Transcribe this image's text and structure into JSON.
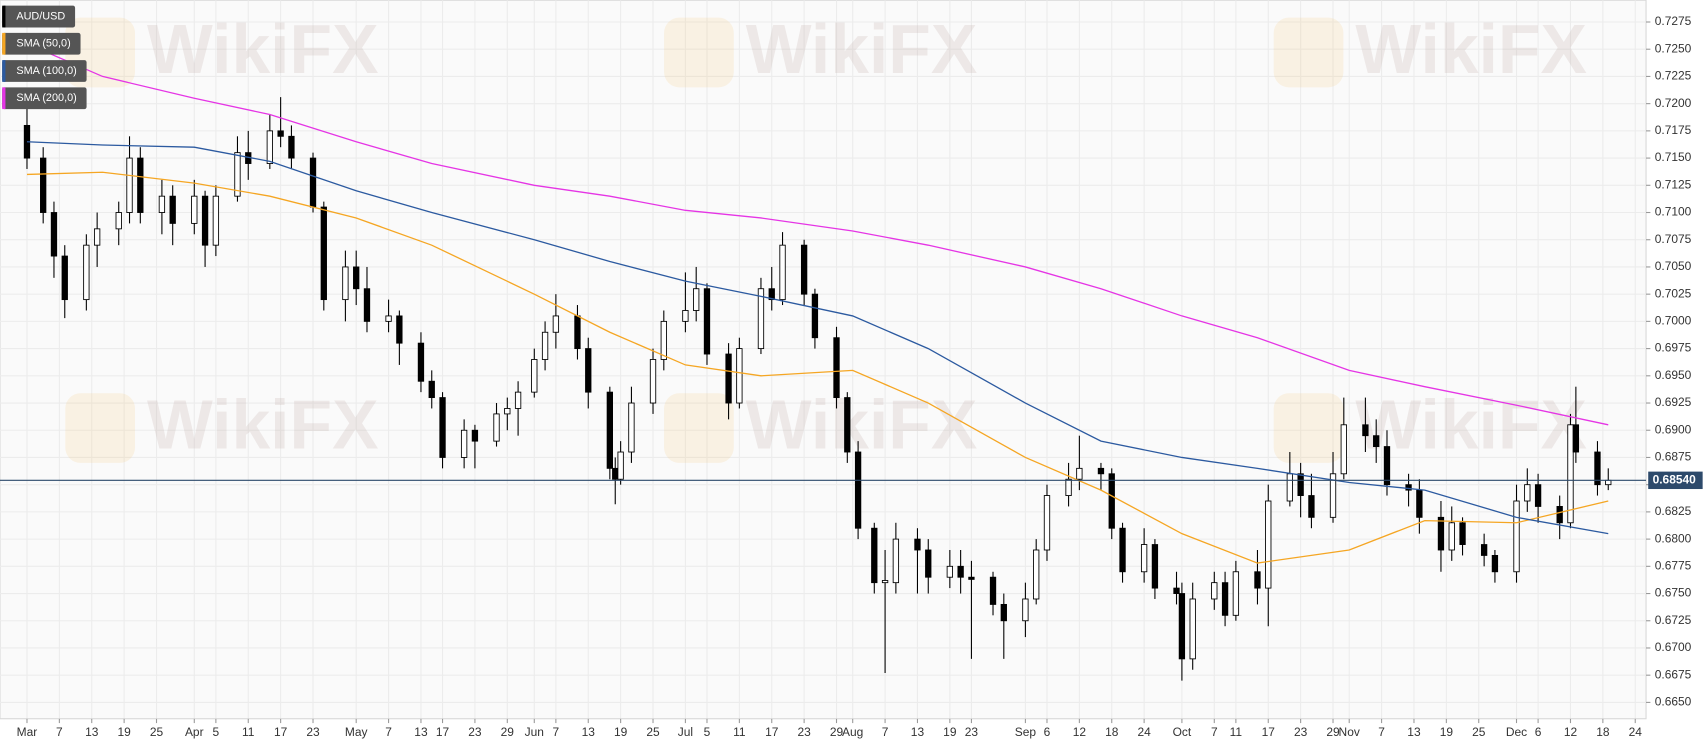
{
  "chart_data": {
    "type": "candlestick",
    "watermark": "WikiFX",
    "last_price": {
      "value": 0.6854,
      "label": "0.68540"
    },
    "xlim": [
      "Feb 24",
      "Dec 26"
    ],
    "ylim": [
      0.6635,
      0.7295
    ],
    "grid": true,
    "yticks": [
      {
        "value": 0.665,
        "label": "0.6650"
      },
      {
        "value": 0.6675,
        "label": "0.6675"
      },
      {
        "value": 0.67,
        "label": "0.6700"
      },
      {
        "value": 0.6725,
        "label": "0.6725"
      },
      {
        "value": 0.675,
        "label": "0.6750"
      },
      {
        "value": 0.6775,
        "label": "0.6775"
      },
      {
        "value": 0.68,
        "label": "0.6800"
      },
      {
        "value": 0.6825,
        "label": "0.6825"
      },
      {
        "value": 0.685,
        "label": "0.6850"
      },
      {
        "value": 0.6875,
        "label": "0.6875"
      },
      {
        "value": 0.69,
        "label": "0.6900"
      },
      {
        "value": 0.6925,
        "label": "0.6925"
      },
      {
        "value": 0.695,
        "label": "0.6950"
      },
      {
        "value": 0.6975,
        "label": "0.6975"
      },
      {
        "value": 0.7,
        "label": "0.7000"
      },
      {
        "value": 0.7025,
        "label": "0.7025"
      },
      {
        "value": 0.705,
        "label": "0.7050"
      },
      {
        "value": 0.7075,
        "label": "0.7075"
      },
      {
        "value": 0.71,
        "label": "0.7100"
      },
      {
        "value": 0.7125,
        "label": "0.7125"
      },
      {
        "value": 0.715,
        "label": "0.7150"
      },
      {
        "value": 0.7175,
        "label": "0.7175"
      },
      {
        "value": 0.72,
        "label": "0.7200"
      },
      {
        "value": 0.7225,
        "label": "0.7225"
      },
      {
        "value": 0.725,
        "label": "0.7250"
      },
      {
        "value": 0.7275,
        "label": "0.7275"
      }
    ],
    "xticks": [
      {
        "value": "Mar 1",
        "label": "Mar"
      },
      {
        "value": "Mar 7",
        "label": "7"
      },
      {
        "value": "Mar 13",
        "label": "13"
      },
      {
        "value": "Mar 19",
        "label": "19"
      },
      {
        "value": "Mar 25",
        "label": "25"
      },
      {
        "value": "Apr 1",
        "label": "Apr"
      },
      {
        "value": "Apr 5",
        "label": "5"
      },
      {
        "value": "Apr 11",
        "label": "11"
      },
      {
        "value": "Apr 17",
        "label": "17"
      },
      {
        "value": "Apr 23",
        "label": "23"
      },
      {
        "value": "May 1",
        "label": "May"
      },
      {
        "value": "May 7",
        "label": "7"
      },
      {
        "value": "May 13",
        "label": "13"
      },
      {
        "value": "May 17",
        "label": "17"
      },
      {
        "value": "May 23",
        "label": "23"
      },
      {
        "value": "May 29",
        "label": "29"
      },
      {
        "value": "Jun 3",
        "label": "Jun"
      },
      {
        "value": "Jun 7",
        "label": "7"
      },
      {
        "value": "Jun 13",
        "label": "13"
      },
      {
        "value": "Jun 19",
        "label": "19"
      },
      {
        "value": "Jun 25",
        "label": "25"
      },
      {
        "value": "Jul 1",
        "label": "Jul"
      },
      {
        "value": "Jul 5",
        "label": "5"
      },
      {
        "value": "Jul 11",
        "label": "11"
      },
      {
        "value": "Jul 17",
        "label": "17"
      },
      {
        "value": "Jul 23",
        "label": "23"
      },
      {
        "value": "Jul 29",
        "label": "29"
      },
      {
        "value": "Aug 1",
        "label": "Aug"
      },
      {
        "value": "Aug 7",
        "label": "7"
      },
      {
        "value": "Aug 13",
        "label": "13"
      },
      {
        "value": "Aug 19",
        "label": "19"
      },
      {
        "value": "Aug 23",
        "label": "23"
      },
      {
        "value": "Sep 2",
        "label": "Sep"
      },
      {
        "value": "Sep 6",
        "label": "6"
      },
      {
        "value": "Sep 12",
        "label": "12"
      },
      {
        "value": "Sep 18",
        "label": "18"
      },
      {
        "value": "Sep 24",
        "label": "24"
      },
      {
        "value": "Oct 1",
        "label": "Oct"
      },
      {
        "value": "Oct 7",
        "label": "7"
      },
      {
        "value": "Oct 11",
        "label": "11"
      },
      {
        "value": "Oct 17",
        "label": "17"
      },
      {
        "value": "Oct 23",
        "label": "23"
      },
      {
        "value": "Oct 29",
        "label": "29"
      },
      {
        "value": "Nov 1",
        "label": "Nov"
      },
      {
        "value": "Nov 7",
        "label": "7"
      },
      {
        "value": "Nov 13",
        "label": "13"
      },
      {
        "value": "Nov 19",
        "label": "19"
      },
      {
        "value": "Nov 25",
        "label": "25"
      },
      {
        "value": "Dec 2",
        "label": "Dec"
      },
      {
        "value": "Dec 6",
        "label": "6"
      },
      {
        "value": "Dec 12",
        "label": "12"
      },
      {
        "value": "Dec 18",
        "label": "18"
      },
      {
        "value": "Dec 24",
        "label": "24"
      }
    ],
    "series": [
      {
        "name": "AUD/USD",
        "color": "#000000",
        "x": [
          "Mar 1",
          "Mar 4",
          "Mar 6",
          "Mar 8",
          "Mar 12",
          "Mar 14",
          "Mar 18",
          "Mar 20",
          "Mar 22",
          "Mar 26",
          "Mar 28",
          "Apr 1",
          "Apr 3",
          "Apr 5",
          "Apr 9",
          "Apr 11",
          "Apr 15",
          "Apr 17",
          "Apr 19",
          "Apr 23",
          "Apr 25",
          "Apr 29",
          "May 1",
          "May 3",
          "May 7",
          "May 9",
          "May 13",
          "May 15",
          "May 17",
          "May 21",
          "May 23",
          "May 27",
          "May 29",
          "May 31",
          "Jun 3",
          "Jun 5",
          "Jun 7",
          "Jun 11",
          "Jun 13",
          "Jun 17",
          "Jun 18",
          "Jun 19",
          "Jun 21",
          "Jun 25",
          "Jun 27",
          "Jul 1",
          "Jul 3",
          "Jul 5",
          "Jul 9",
          "Jul 11",
          "Jul 15",
          "Jul 17",
          "Jul 19",
          "Jul 23",
          "Jul 25",
          "Jul 29",
          "Jul 31",
          "Aug 2",
          "Aug 5",
          "Aug 7",
          "Aug 9",
          "Aug 13",
          "Aug 15",
          "Aug 19",
          "Aug 21",
          "Aug 23",
          "Aug 27",
          "Aug 29",
          "Sep 2",
          "Sep 4",
          "Sep 6",
          "Sep 10",
          "Sep 12",
          "Sep 16",
          "Sep 18",
          "Sep 20",
          "Sep 24",
          "Sep 26",
          "Sep 30",
          "Oct 1",
          "Oct 3",
          "Oct 7",
          "Oct 9",
          "Oct 11",
          "Oct 15",
          "Oct 17",
          "Oct 21",
          "Oct 23",
          "Oct 25",
          "Oct 29",
          "Oct 31",
          "Nov 4",
          "Nov 6",
          "Nov 8",
          "Nov 12",
          "Nov 14",
          "Nov 18",
          "Nov 20",
          "Nov 22",
          "Nov 26",
          "Nov 28",
          "Dec 2",
          "Dec 4",
          "Dec 6",
          "Dec 10",
          "Dec 12",
          "Dec 13",
          "Dec 17",
          "Dec 19"
        ],
        "open": [
          0.718,
          0.715,
          0.71,
          0.706,
          0.702,
          0.707,
          0.7085,
          0.71,
          0.715,
          0.71,
          0.7115,
          0.709,
          0.7115,
          0.707,
          0.7115,
          0.7155,
          0.7145,
          0.7175,
          0.717,
          0.715,
          0.7105,
          0.702,
          0.705,
          0.703,
          0.7,
          0.7005,
          0.698,
          0.6945,
          0.693,
          0.6875,
          0.69,
          0.689,
          0.6915,
          0.692,
          0.6935,
          0.6965,
          0.699,
          0.7005,
          0.6975,
          0.6935,
          0.6865,
          0.6855,
          0.688,
          0.6925,
          0.6965,
          0.7,
          0.701,
          0.703,
          0.697,
          0.6925,
          0.6975,
          0.703,
          0.702,
          0.707,
          0.7025,
          0.6985,
          0.693,
          0.688,
          0.681,
          0.676,
          0.676,
          0.68,
          0.679,
          0.6765,
          0.6775,
          0.6765,
          0.6765,
          0.674,
          0.6725,
          0.6745,
          0.679,
          0.684,
          0.6855,
          0.6865,
          0.686,
          0.681,
          0.677,
          0.6795,
          0.6755,
          0.675,
          0.669,
          0.6745,
          0.676,
          0.673,
          0.677,
          0.6755,
          0.6835,
          0.686,
          0.684,
          0.682,
          0.686,
          0.6905,
          0.6895,
          0.6885,
          0.685,
          0.6845,
          0.682,
          0.679,
          0.6815,
          0.6795,
          0.6785,
          0.677,
          0.6835,
          0.685,
          0.683,
          0.6815,
          0.6905,
          0.688,
          0.685
        ],
        "high": [
          0.72,
          0.716,
          0.711,
          0.707,
          0.708,
          0.71,
          0.711,
          0.717,
          0.716,
          0.713,
          0.7125,
          0.713,
          0.712,
          0.7125,
          0.717,
          0.7175,
          0.719,
          0.7206,
          0.718,
          0.7155,
          0.711,
          0.7065,
          0.7065,
          0.705,
          0.702,
          0.701,
          0.699,
          0.6955,
          0.6935,
          0.691,
          0.6905,
          0.6925,
          0.693,
          0.6945,
          0.6975,
          0.7,
          0.7025,
          0.7015,
          0.6985,
          0.694,
          0.6875,
          0.689,
          0.694,
          0.6975,
          0.701,
          0.7045,
          0.705,
          0.7035,
          0.698,
          0.6985,
          0.704,
          0.705,
          0.7082,
          0.7075,
          0.703,
          0.6995,
          0.6935,
          0.689,
          0.6815,
          0.679,
          0.6815,
          0.681,
          0.68,
          0.679,
          0.679,
          0.678,
          0.677,
          0.675,
          0.676,
          0.68,
          0.685,
          0.687,
          0.6895,
          0.687,
          0.6865,
          0.6815,
          0.681,
          0.68,
          0.677,
          0.676,
          0.676,
          0.677,
          0.677,
          0.678,
          0.679,
          0.685,
          0.688,
          0.687,
          0.686,
          0.688,
          0.693,
          0.693,
          0.691,
          0.69,
          0.686,
          0.6855,
          0.6835,
          0.683,
          0.682,
          0.6805,
          0.679,
          0.685,
          0.6865,
          0.686,
          0.684,
          0.6915,
          0.694,
          0.689,
          0.6865
        ],
        "low": [
          0.714,
          0.709,
          0.704,
          0.7003,
          0.701,
          0.705,
          0.707,
          0.709,
          0.709,
          0.708,
          0.707,
          0.708,
          0.705,
          0.706,
          0.711,
          0.713,
          0.714,
          0.716,
          0.714,
          0.71,
          0.701,
          0.7,
          0.7015,
          0.699,
          0.699,
          0.696,
          0.6935,
          0.692,
          0.6865,
          0.6865,
          0.6865,
          0.6885,
          0.69,
          0.6895,
          0.693,
          0.6955,
          0.6975,
          0.6965,
          0.692,
          0.6855,
          0.6832,
          0.685,
          0.687,
          0.6915,
          0.6955,
          0.699,
          0.7,
          0.696,
          0.691,
          0.692,
          0.697,
          0.701,
          0.7015,
          0.7015,
          0.6975,
          0.692,
          0.687,
          0.68,
          0.675,
          0.6677,
          0.675,
          0.675,
          0.675,
          0.6755,
          0.675,
          0.669,
          0.673,
          0.669,
          0.671,
          0.674,
          0.678,
          0.683,
          0.6845,
          0.6845,
          0.68,
          0.676,
          0.676,
          0.6745,
          0.674,
          0.667,
          0.668,
          0.6735,
          0.672,
          0.6725,
          0.674,
          0.672,
          0.683,
          0.682,
          0.681,
          0.6815,
          0.6855,
          0.688,
          0.687,
          0.684,
          0.683,
          0.6805,
          0.677,
          0.678,
          0.6785,
          0.6775,
          0.676,
          0.676,
          0.6825,
          0.6815,
          0.68,
          0.681,
          0.687,
          0.684,
          0.6845
        ],
        "close": [
          0.715,
          0.71,
          0.706,
          0.702,
          0.707,
          0.7085,
          0.71,
          0.715,
          0.71,
          0.7115,
          0.709,
          0.7115,
          0.707,
          0.7115,
          0.7155,
          0.7145,
          0.7175,
          0.717,
          0.715,
          0.7105,
          0.702,
          0.705,
          0.703,
          0.7,
          0.7005,
          0.698,
          0.6945,
          0.693,
          0.6875,
          0.69,
          0.689,
          0.6915,
          0.692,
          0.6935,
          0.6965,
          0.699,
          0.7005,
          0.6975,
          0.6935,
          0.6865,
          0.6855,
          0.688,
          0.6925,
          0.6965,
          0.7,
          0.701,
          0.703,
          0.697,
          0.6925,
          0.6975,
          0.703,
          0.702,
          0.707,
          0.7025,
          0.6985,
          0.693,
          0.688,
          0.681,
          0.676,
          0.6762,
          0.68,
          0.679,
          0.6765,
          0.6775,
          0.6765,
          0.6763,
          0.674,
          0.6725,
          0.6745,
          0.679,
          0.684,
          0.6855,
          0.6865,
          0.686,
          0.681,
          0.677,
          0.6795,
          0.6755,
          0.675,
          0.669,
          0.6745,
          0.676,
          0.673,
          0.677,
          0.6755,
          0.6835,
          0.686,
          0.684,
          0.682,
          0.686,
          0.6905,
          0.6895,
          0.6885,
          0.685,
          0.6845,
          0.682,
          0.679,
          0.6815,
          0.6795,
          0.6785,
          0.677,
          0.6835,
          0.685,
          0.683,
          0.6815,
          0.6905,
          0.688,
          0.685,
          0.6854
        ]
      },
      {
        "name": "SMA (50,0)",
        "color": "#f5a623",
        "type": "line",
        "x": [
          "Mar 1",
          "Mar 15",
          "Apr 1",
          "Apr 15",
          "May 1",
          "May 15",
          "Jun 3",
          "Jun 17",
          "Jul 1",
          "Jul 15",
          "Aug 1",
          "Aug 15",
          "Sep 2",
          "Sep 16",
          "Oct 1",
          "Oct 15",
          "Nov 1",
          "Nov 15",
          "Dec 2",
          "Dec 19"
        ],
        "values": [
          0.7135,
          0.7137,
          0.7127,
          0.7115,
          0.7095,
          0.707,
          0.7025,
          0.699,
          0.696,
          0.695,
          0.6955,
          0.6925,
          0.6875,
          0.6845,
          0.6805,
          0.6778,
          0.679,
          0.6817,
          0.6815,
          0.6835
        ]
      },
      {
        "name": "SMA (100,0)",
        "color": "#2c5aa0",
        "type": "line",
        "x": [
          "Mar 1",
          "Mar 15",
          "Apr 1",
          "Apr 15",
          "May 1",
          "May 15",
          "Jun 3",
          "Jun 17",
          "Jul 1",
          "Jul 15",
          "Aug 1",
          "Aug 15",
          "Sep 2",
          "Sep 16",
          "Oct 1",
          "Oct 15",
          "Nov 1",
          "Nov 15",
          "Dec 2",
          "Dec 19"
        ],
        "values": [
          0.7165,
          0.7162,
          0.716,
          0.7147,
          0.712,
          0.71,
          0.7075,
          0.7055,
          0.7037,
          0.7023,
          0.7005,
          0.6975,
          0.6925,
          0.689,
          0.6875,
          0.6865,
          0.6852,
          0.6845,
          0.682,
          0.6805
        ]
      },
      {
        "name": "SMA (200,0)",
        "color": "#e535e5",
        "type": "line",
        "x": [
          "Mar 1",
          "Mar 15",
          "Apr 1",
          "Apr 15",
          "May 1",
          "May 15",
          "Jun 3",
          "Jun 17",
          "Jul 1",
          "Jul 15",
          "Aug 1",
          "Aug 15",
          "Sep 2",
          "Sep 16",
          "Oct 1",
          "Oct 15",
          "Nov 1",
          "Nov 15",
          "Dec 2",
          "Dec 19"
        ],
        "values": [
          0.7255,
          0.7225,
          0.7205,
          0.719,
          0.7165,
          0.7145,
          0.7125,
          0.7115,
          0.7102,
          0.7095,
          0.7083,
          0.707,
          0.705,
          0.703,
          0.7005,
          0.6985,
          0.6955,
          0.694,
          0.6923,
          0.6905
        ]
      }
    ]
  }
}
